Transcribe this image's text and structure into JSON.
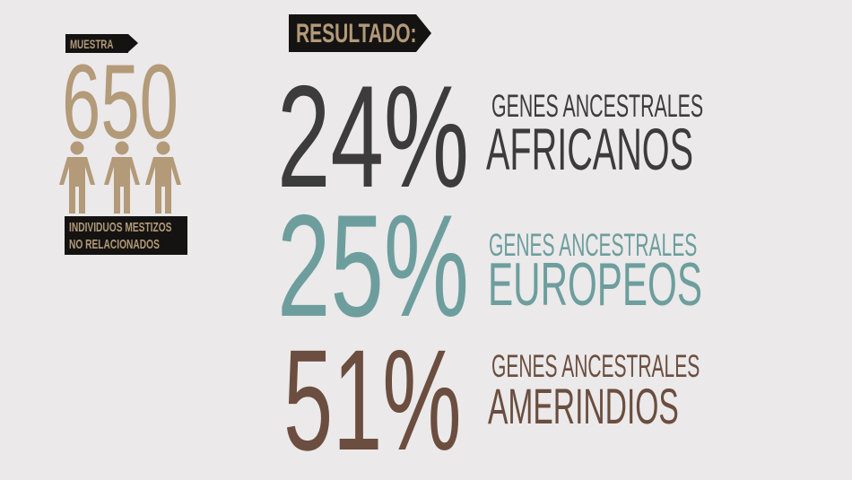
{
  "sample": {
    "label": "MUESTRA",
    "count": "650",
    "description_line1": "INDIVIDUOS MESTIZOS",
    "description_line2": "NO RELACIONADOS",
    "person_icons": 3,
    "color": "#b39a78"
  },
  "result": {
    "label": "RESULTADO:",
    "items": [
      {
        "percent": "24%",
        "line1": "GENES ANCESTRALES",
        "line2": "AFRICANOS",
        "color": "#3d3c3c"
      },
      {
        "percent": "25%",
        "line1": "GENES ANCESTRALES",
        "line2": "EUROPEOS",
        "color": "#6d9e9d"
      },
      {
        "percent": "51%",
        "line1": "GENES ANCESTRALES",
        "line2": "AMERINDIOS",
        "color": "#6b4e3f"
      }
    ]
  }
}
